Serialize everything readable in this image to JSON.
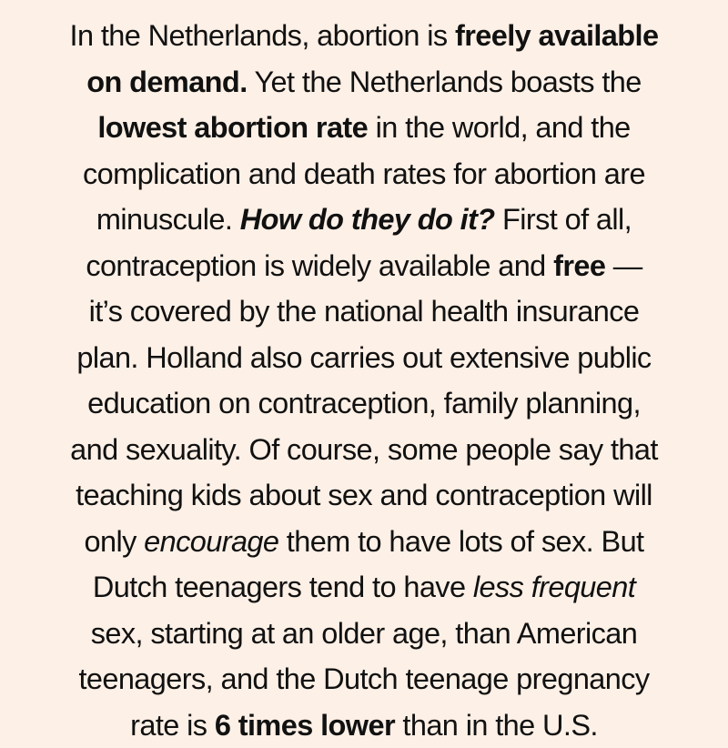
{
  "background_color": "#fdf0e6",
  "text_color": "#111111",
  "paragraph": {
    "lines": [
      {
        "segments": [
          {
            "text": "In the Netherlands, abortion is ",
            "style": "normal"
          },
          {
            "text": "freely available",
            "style": "bold"
          }
        ]
      },
      {
        "segments": [
          {
            "text": "on demand.",
            "style": "bold"
          },
          {
            "text": " Yet the Netherlands boasts the",
            "style": "normal"
          }
        ]
      },
      {
        "segments": [
          {
            "text": "lowest abortion rate",
            "style": "bold"
          },
          {
            "text": " in the world, and the",
            "style": "normal"
          }
        ]
      },
      {
        "segments": [
          {
            "text": "complication and death rates for abortion are",
            "style": "normal"
          }
        ]
      },
      {
        "segments": [
          {
            "text": "minuscule. ",
            "style": "normal"
          },
          {
            "text": "How do they do it?",
            "style": "bold-italic"
          },
          {
            "text": " First of all,",
            "style": "normal"
          }
        ]
      },
      {
        "segments": [
          {
            "text": "contraception is widely available and ",
            "style": "normal"
          },
          {
            "text": "free",
            "style": "bold"
          },
          {
            "text": " —",
            "style": "normal"
          }
        ]
      },
      {
        "segments": [
          {
            "text": "it’s covered by the national health insurance",
            "style": "normal"
          }
        ]
      },
      {
        "segments": [
          {
            "text": "plan. Holland also carries out extensive public",
            "style": "normal"
          }
        ]
      },
      {
        "segments": [
          {
            "text": "education on contraception, family planning,",
            "style": "normal"
          }
        ]
      },
      {
        "segments": [
          {
            "text": "and sexuality. Of course, some people say that",
            "style": "normal"
          }
        ]
      },
      {
        "segments": [
          {
            "text": "teaching kids about sex and contraception will",
            "style": "normal"
          }
        ]
      },
      {
        "segments": [
          {
            "text": "only ",
            "style": "normal"
          },
          {
            "text": "encourage",
            "style": "italic"
          },
          {
            "text": " them to have lots of sex. But",
            "style": "normal"
          }
        ]
      },
      {
        "segments": [
          {
            "text": "Dutch teenagers tend to have ",
            "style": "normal"
          },
          {
            "text": "less frequent",
            "style": "italic"
          }
        ]
      },
      {
        "segments": [
          {
            "text": "sex, starting at an older age, than American",
            "style": "normal"
          }
        ]
      },
      {
        "segments": [
          {
            "text": "teenagers, and the Dutch teenage pregnancy",
            "style": "normal"
          }
        ]
      },
      {
        "segments": [
          {
            "text": "rate is ",
            "style": "normal"
          },
          {
            "text": "6 times lower",
            "style": "bold"
          },
          {
            "text": " than in the U.S.",
            "style": "normal"
          }
        ]
      }
    ]
  }
}
